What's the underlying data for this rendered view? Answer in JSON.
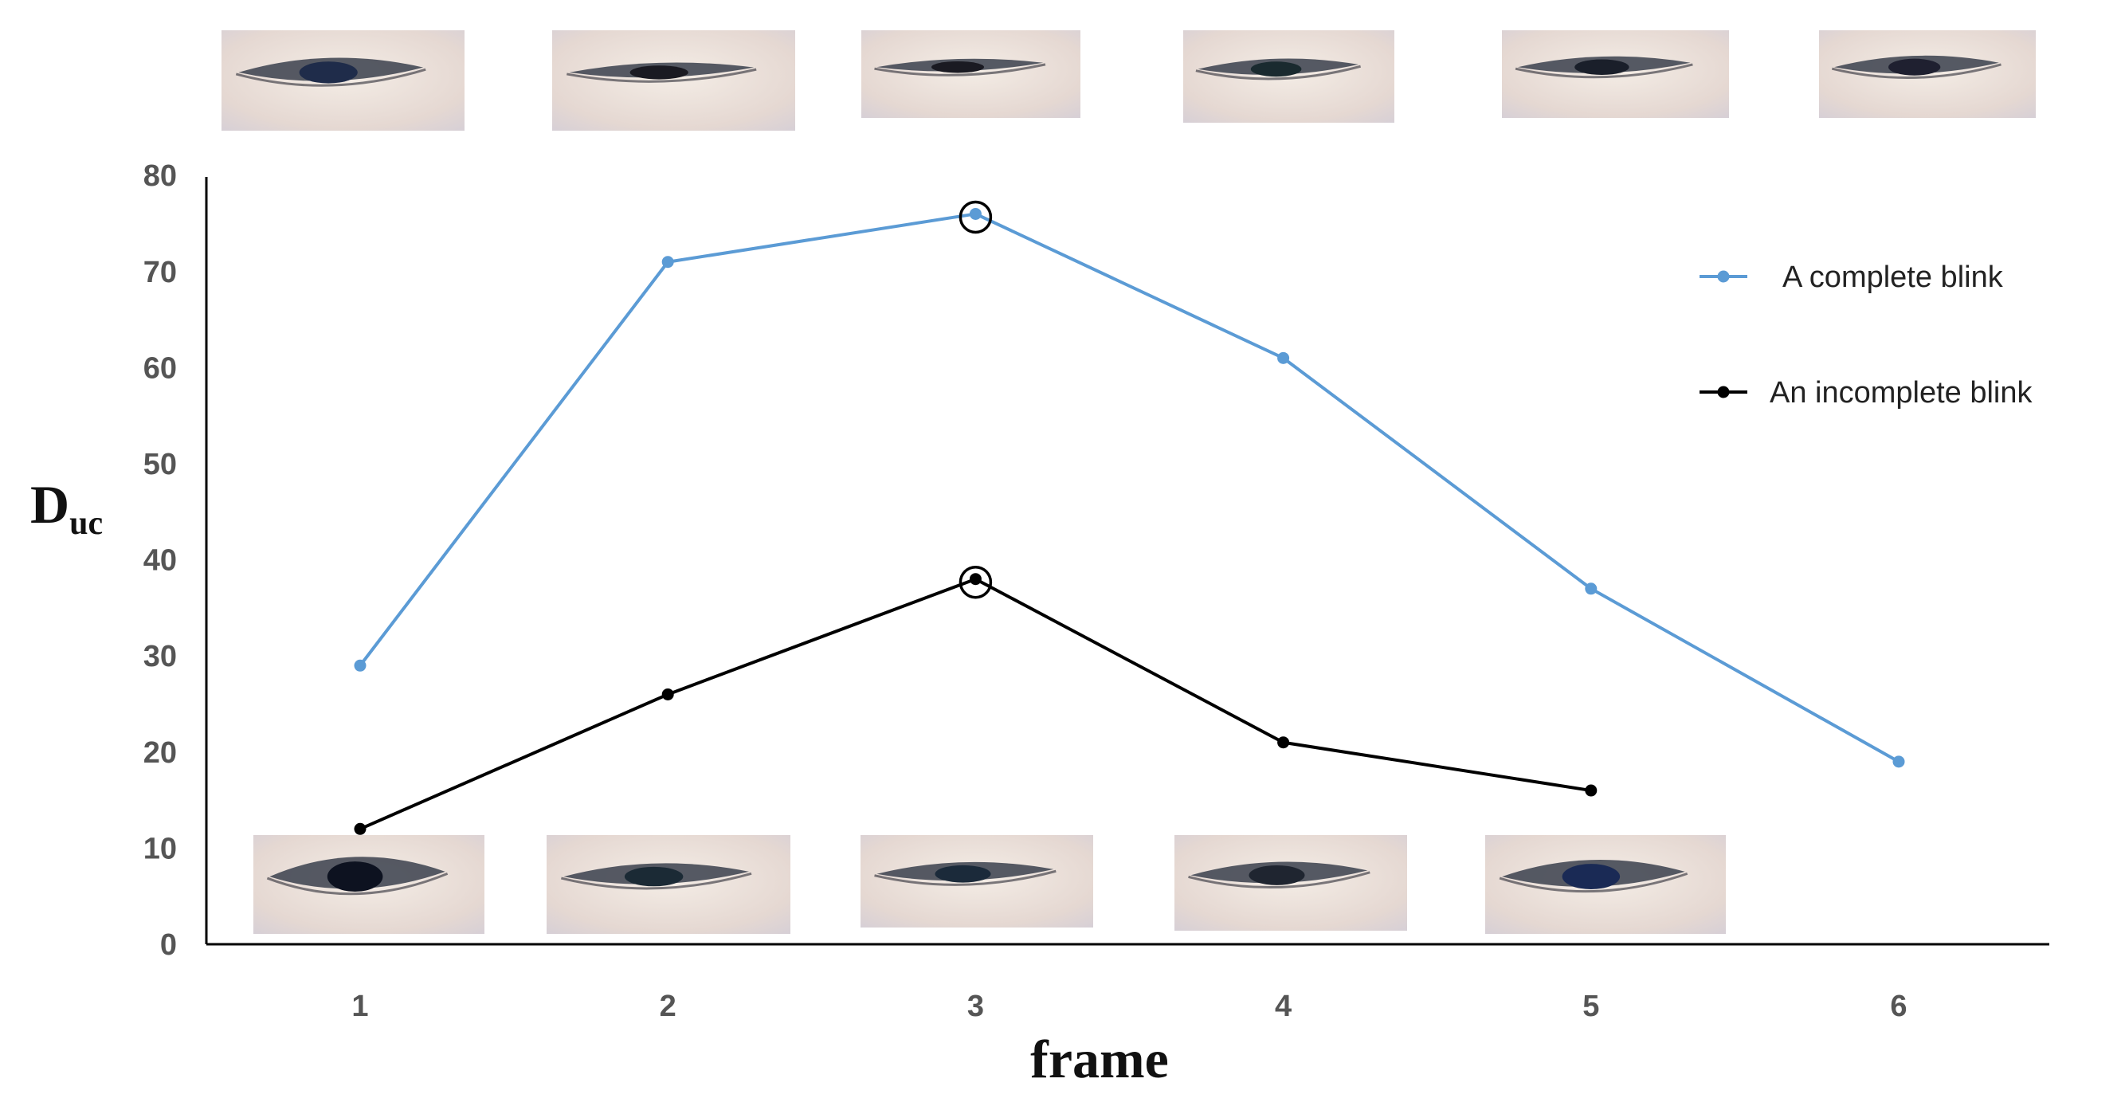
{
  "chart_data": {
    "type": "line",
    "title": "",
    "xlabel": "frame",
    "ylabel": {
      "main": "D",
      "sub": "uc"
    },
    "x": [
      1,
      2,
      3,
      4,
      5,
      6
    ],
    "x_tick_labels": [
      "1",
      "2",
      "3",
      "4",
      "5",
      "6"
    ],
    "y_tick_labels": [
      "0",
      "10",
      "20",
      "30",
      "40",
      "50",
      "60",
      "70",
      "80"
    ],
    "ylim": [
      0,
      80
    ],
    "grid": false,
    "legend_position": "top-right",
    "series": [
      {
        "name": "A complete blink",
        "color": "#5b9bd5",
        "x": [
          1,
          2,
          3,
          4,
          5,
          6
        ],
        "values": [
          29,
          71,
          76,
          61,
          37,
          19
        ],
        "highlight_x": 3
      },
      {
        "name": "An incomplete blink",
        "color": "#000000",
        "x": [
          1,
          2,
          3,
          4,
          5
        ],
        "values": [
          12,
          26,
          38,
          21,
          16
        ],
        "highlight_x": 3
      }
    ],
    "images": {
      "top_row": "eye crops for the complete blink, frames 1-6",
      "bottom_row": "eye crops for the incomplete blink, frames 1-5"
    }
  }
}
